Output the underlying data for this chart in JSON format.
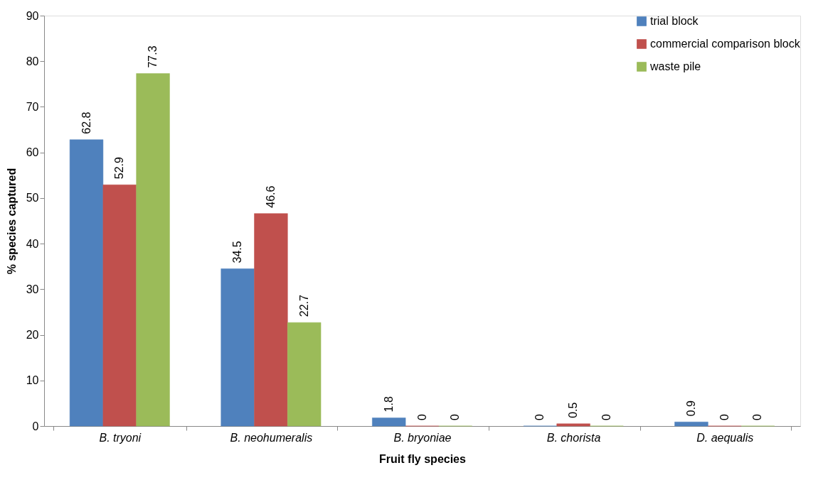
{
  "chart_data": {
    "type": "bar",
    "xlabel": "Fruit fly species",
    "ylabel": "% species captured",
    "categories": [
      "B. tryoni",
      "B. neohumeralis",
      "B. bryoniae",
      "B. chorista",
      "D. aequalis"
    ],
    "series": [
      {
        "name": "trial block",
        "color": "#4f81bd",
        "values": [
          62.8,
          34.5,
          1.8,
          0,
          0.9
        ]
      },
      {
        "name": "commercial comparison block",
        "color": "#c0504d",
        "values": [
          52.9,
          46.6,
          0,
          0.5,
          0
        ]
      },
      {
        "name": "waste pile",
        "color": "#9bbb59",
        "values": [
          77.3,
          22.7,
          0,
          0,
          0
        ]
      }
    ],
    "ylim": [
      0,
      90
    ],
    "yticks": [
      0,
      10,
      20,
      30,
      40,
      50,
      60,
      70,
      80,
      90
    ],
    "data_labels": true,
    "grid": false,
    "legend": "top right"
  }
}
